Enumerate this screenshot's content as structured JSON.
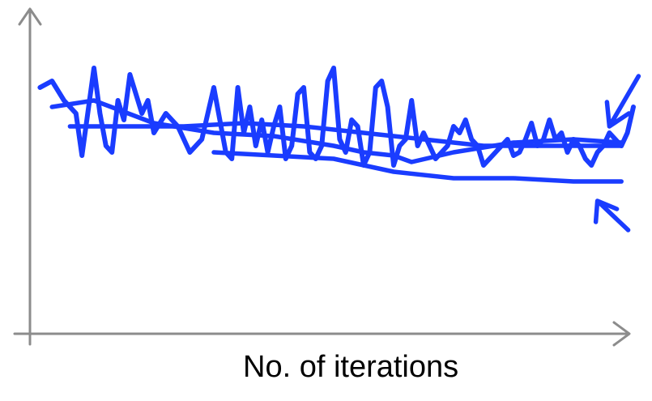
{
  "chart_data": {
    "type": "line",
    "title": "",
    "xlabel": "No. of iterations",
    "ylabel": "",
    "xlim": [
      0,
      100
    ],
    "ylim": [
      0,
      100
    ],
    "grid": false,
    "legend": "none",
    "series": [
      {
        "x": [
          1,
          3,
          5,
          7,
          8,
          10,
          11,
          12,
          13,
          14,
          15,
          16,
          17,
          18,
          19,
          20,
          22,
          24,
          26,
          28,
          30,
          31,
          32,
          33,
          34,
          35,
          36,
          37,
          38,
          39,
          40,
          41,
          42,
          43,
          44,
          45,
          46,
          47,
          48,
          49,
          50,
          51,
          52,
          53,
          54,
          55,
          56,
          57,
          58,
          59,
          60,
          61,
          62,
          63,
          64,
          65,
          66,
          67,
          68,
          69,
          70,
          71,
          72,
          73,
          74,
          75,
          76,
          77,
          78,
          79,
          80,
          81,
          82,
          83,
          84,
          85,
          86,
          87,
          88,
          89,
          90,
          91,
          92,
          93,
          94,
          95,
          96,
          97,
          98,
          99,
          100
        ],
        "y": [
          76,
          78,
          72,
          68,
          55,
          82,
          68,
          58,
          56,
          72,
          66,
          80,
          74,
          68,
          72,
          62,
          68,
          64,
          56,
          60,
          76,
          66,
          56,
          54,
          76,
          62,
          70,
          58,
          66,
          56,
          64,
          70,
          54,
          58,
          74,
          76,
          56,
          54,
          58,
          78,
          82,
          60,
          56,
          66,
          64,
          52,
          56,
          76,
          78,
          70,
          52,
          58,
          60,
          72,
          58,
          62,
          58,
          54,
          56,
          58,
          64,
          62,
          66,
          60,
          58,
          52,
          54,
          56,
          58,
          60,
          55,
          56,
          60,
          65,
          58,
          60,
          66,
          60,
          62,
          56,
          60,
          58,
          54,
          52,
          56,
          58,
          62,
          60,
          58,
          62,
          70
        ],
        "color": "#1a3cff"
      },
      {
        "x": [
          3,
          10,
          20,
          30,
          40,
          50,
          55,
          60,
          63,
          70,
          80,
          90,
          98
        ],
        "y": [
          70,
          72,
          65,
          62,
          61,
          58,
          56,
          55,
          53,
          56,
          59,
          60,
          59
        ],
        "color": "#1a3cff"
      },
      {
        "x": [
          6,
          15,
          25,
          35,
          45,
          55,
          60,
          65,
          70,
          75,
          80,
          90,
          98
        ],
        "y": [
          64,
          64,
          64,
          65,
          64,
          62,
          61,
          60,
          59,
          58,
          58,
          58,
          58
        ],
        "color": "#1a3cff"
      },
      {
        "x": [
          30,
          40,
          50,
          60,
          70,
          80,
          90,
          98
        ],
        "y": [
          56,
          55,
          54,
          50,
          48,
          48,
          47,
          47
        ],
        "color": "#1a3cff"
      }
    ],
    "annotations": [
      {
        "type": "arrow",
        "direction": "down",
        "x": 96,
        "y": 64
      },
      {
        "type": "arrow",
        "direction": "up",
        "x": 94,
        "y": 41
      }
    ],
    "axis_color": "#8c8c8c"
  }
}
